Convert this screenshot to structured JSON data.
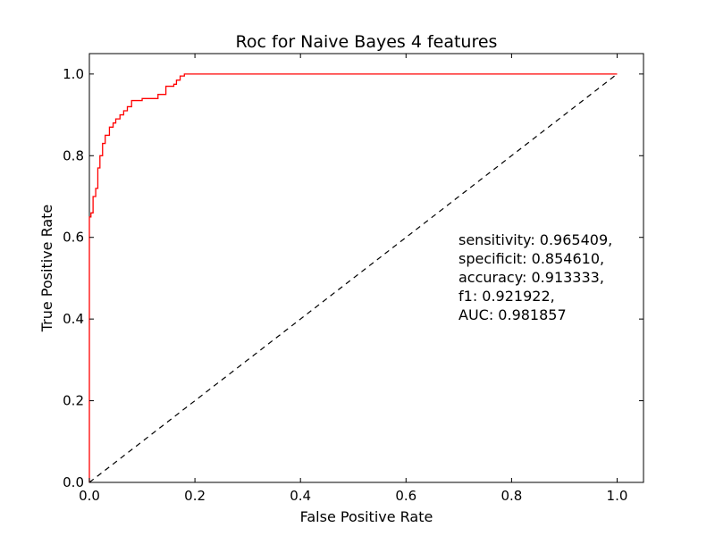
{
  "chart_data": {
    "type": "line",
    "title": "Roc for Naive Bayes 4 features",
    "xlabel": "False Positive Rate",
    "ylabel": "True Positive Rate",
    "xlim": [
      0.0,
      1.05
    ],
    "ylim": [
      0.0,
      1.05
    ],
    "xticks": [
      0.0,
      0.2,
      0.4,
      0.6,
      0.8,
      1.0
    ],
    "xtick_labels": [
      "0.0",
      "0.2",
      "0.4",
      "0.6",
      "0.8",
      "1.0"
    ],
    "yticks": [
      0.0,
      0.2,
      0.4,
      0.6,
      0.8,
      1.0
    ],
    "ytick_labels": [
      "0.0",
      "0.2",
      "0.4",
      "0.6",
      "0.8",
      "1.0"
    ],
    "grid": false,
    "legend": "none",
    "series": [
      {
        "style": "solid",
        "color": "#ff0000",
        "x": [
          0.0,
          0.0,
          0.003,
          0.003,
          0.007,
          0.007,
          0.012,
          0.012,
          0.016,
          0.016,
          0.02,
          0.02,
          0.025,
          0.025,
          0.03,
          0.03,
          0.038,
          0.038,
          0.045,
          0.045,
          0.05,
          0.05,
          0.058,
          0.058,
          0.065,
          0.065,
          0.072,
          0.072,
          0.08,
          0.08,
          0.1,
          0.1,
          0.13,
          0.13,
          0.145,
          0.145,
          0.16,
          0.16,
          0.165,
          0.165,
          0.172,
          0.172,
          0.18,
          0.18,
          1.0
        ],
        "y": [
          0.0,
          0.65,
          0.65,
          0.66,
          0.66,
          0.7,
          0.7,
          0.72,
          0.72,
          0.77,
          0.77,
          0.8,
          0.8,
          0.83,
          0.83,
          0.85,
          0.85,
          0.87,
          0.87,
          0.88,
          0.88,
          0.89,
          0.89,
          0.9,
          0.9,
          0.91,
          0.91,
          0.92,
          0.92,
          0.935,
          0.935,
          0.94,
          0.94,
          0.95,
          0.95,
          0.97,
          0.97,
          0.975,
          0.975,
          0.985,
          0.985,
          0.995,
          0.995,
          1.0,
          1.0
        ]
      },
      {
        "style": "dashed",
        "color": "#000000",
        "x": [
          0.0,
          1.0
        ],
        "y": [
          0.0,
          1.0
        ]
      }
    ],
    "annotation_lines": [
      "sensitivity: 0.965409,",
      "specificit: 0.854610,",
      "accuracy: 0.913333,",
      "f1: 0.921922,",
      "AUC: 0.981857"
    ]
  }
}
